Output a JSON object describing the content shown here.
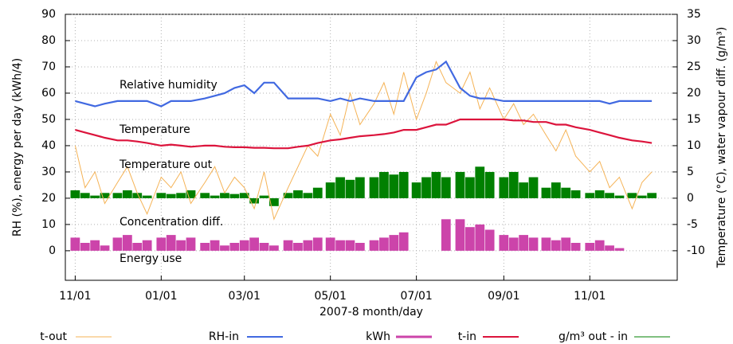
{
  "chart_data": {
    "type": "line",
    "x_label": "2007-8 month/day",
    "y_label": "RH (%), energy per day (kWh/4)",
    "y2_label": "Temperature (°C), water vapour diff. (g/m³)",
    "annotations": [
      "Relative humidity",
      "Temperature",
      "Temperature out",
      "Concentration diff.",
      "Energy use"
    ],
    "x": [
      "11/01",
      "11/08",
      "11/15",
      "11/22",
      "12/01",
      "12/08",
      "12/15",
      "12/22",
      "01/01",
      "01/08",
      "01/15",
      "01/22",
      "02/01",
      "02/08",
      "02/15",
      "02/22",
      "03/01",
      "03/08",
      "03/15",
      "03/22",
      "04/01",
      "04/08",
      "04/15",
      "04/22",
      "05/01",
      "05/08",
      "05/15",
      "05/22",
      "06/01",
      "06/08",
      "06/15",
      "06/22",
      "07/01",
      "07/08",
      "07/15",
      "07/22",
      "08/01",
      "08/08",
      "08/15",
      "08/22",
      "09/01",
      "09/08",
      "09/15",
      "09/22",
      "10/01",
      "10/08",
      "10/15",
      "10/22",
      "11/01",
      "11/08",
      "11/15",
      "11/22",
      "12/01",
      "12/08",
      "12/15"
    ],
    "xlim": [
      "10/25",
      "01/02"
    ],
    "xticks": [
      "11/01",
      "01/01",
      "03/01",
      "05/01",
      "07/01",
      "09/01",
      "11/01"
    ],
    "ylim": [
      -11.25,
      90
    ],
    "yticks": [
      0,
      10,
      20,
      30,
      40,
      50,
      60,
      70,
      80,
      90
    ],
    "y2lim": [
      -15.625,
      35
    ],
    "y2ticks": [
      -10,
      -5,
      0,
      5,
      10,
      15,
      20,
      25,
      30,
      35
    ],
    "grid": true,
    "series": [
      {
        "name": "t-out",
        "type": "line",
        "axis": "y2",
        "color": "#f5b356",
        "values": [
          10,
          2,
          5,
          -1,
          3,
          6,
          1,
          -3,
          4,
          2,
          5,
          -1,
          3,
          6,
          1,
          4,
          2,
          -2,
          5,
          -4,
          2,
          6,
          10,
          8,
          16,
          12,
          20,
          14,
          18,
          22,
          16,
          24,
          15,
          20,
          26,
          22,
          20,
          24,
          17,
          21,
          15,
          18,
          14,
          16,
          12,
          9,
          13,
          8,
          5,
          7,
          2,
          4,
          -2,
          3,
          5
        ]
      },
      {
        "name": "RH-in",
        "type": "line",
        "axis": "y",
        "color": "#4169e1",
        "values": [
          57,
          56,
          55,
          56,
          57,
          57,
          57,
          57,
          55,
          57,
          57,
          57,
          58,
          59,
          60,
          62,
          63,
          60,
          64,
          64,
          58,
          58,
          58,
          58,
          57,
          58,
          57,
          58,
          57,
          57,
          57,
          57,
          66,
          68,
          69,
          72,
          62,
          59,
          58,
          58,
          57,
          57,
          57,
          57,
          57,
          57,
          57,
          57,
          57,
          57,
          56,
          57,
          57,
          57,
          57
        ]
      },
      {
        "name": "kWh",
        "type": "bar",
        "axis": "y",
        "color": "#cc44aa",
        "values": [
          5,
          3,
          4,
          2,
          5,
          6,
          3,
          4,
          5,
          6,
          4,
          5,
          3,
          4,
          2,
          3,
          4,
          5,
          3,
          2,
          4,
          3,
          4,
          5,
          5,
          4,
          4,
          3,
          4,
          5,
          6,
          7,
          0,
          0,
          0,
          12,
          12,
          9,
          10,
          8,
          6,
          5,
          6,
          5,
          5,
          4,
          5,
          3,
          3,
          4,
          2,
          1,
          0,
          0,
          0
        ]
      },
      {
        "name": "t-in",
        "type": "line",
        "axis": "y2",
        "color": "#dc143c",
        "values": [
          13,
          12.5,
          12,
          11.5,
          11,
          11,
          10.8,
          10.5,
          10,
          10.2,
          10,
          9.8,
          10,
          10,
          9.8,
          9.7,
          9.7,
          9.6,
          9.6,
          9.5,
          9.5,
          9.8,
          10,
          10.5,
          11,
          11.2,
          11.5,
          11.8,
          12,
          12.2,
          12.5,
          13,
          13,
          13.5,
          14,
          14,
          15,
          15,
          15,
          15,
          15,
          14.8,
          14.8,
          14.5,
          14.5,
          14,
          14,
          13.5,
          13,
          12.5,
          12,
          11.5,
          11,
          10.8,
          10.5
        ]
      },
      {
        "name": "g/m³ out - in",
        "type": "bar",
        "axis": "y2",
        "color": "#008000",
        "values": [
          1.5,
          1,
          0.5,
          1,
          1,
          1.5,
          1,
          0.5,
          1,
          0.8,
          1,
          1.5,
          1,
          0.5,
          1,
          0.8,
          1,
          -1,
          0.5,
          -1.5,
          1,
          1.5,
          1,
          2,
          3,
          4,
          3.5,
          4,
          4,
          5,
          4.5,
          5,
          3,
          4,
          5,
          4,
          5,
          4,
          6,
          5,
          4,
          5,
          3,
          4,
          2,
          3,
          2,
          1.5,
          1,
          1.5,
          1,
          0.5,
          1,
          0.5,
          1
        ]
      }
    ]
  }
}
